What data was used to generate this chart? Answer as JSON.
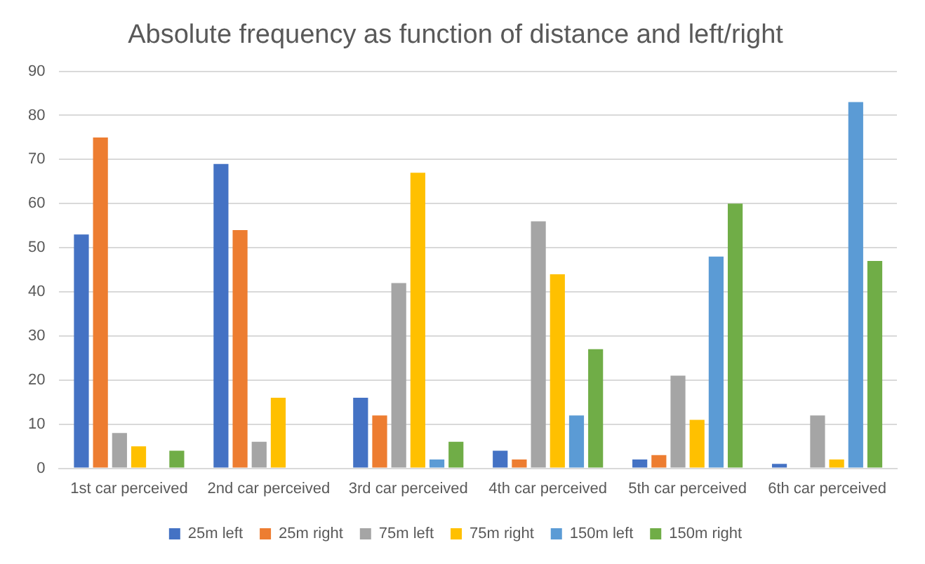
{
  "chart_data": {
    "type": "bar",
    "title": "Absolute frequency as function of distance and left/right",
    "categories": [
      "1st car perceived",
      "2nd car perceived",
      "3rd car perceived",
      "4th car perceived",
      "5th car perceived",
      "6th car perceived"
    ],
    "series": [
      {
        "name": "25m left",
        "color": "#4472c4",
        "values": [
          53,
          69,
          16,
          4,
          2,
          1
        ]
      },
      {
        "name": "25m right",
        "color": "#ed7d31",
        "values": [
          75,
          54,
          12,
          2,
          3,
          0
        ]
      },
      {
        "name": "75m left",
        "color": "#a5a5a5",
        "values": [
          8,
          6,
          42,
          56,
          21,
          12
        ]
      },
      {
        "name": "75m right",
        "color": "#ffc000",
        "values": [
          5,
          16,
          67,
          44,
          11,
          2
        ]
      },
      {
        "name": "150m left",
        "color": "#5b9bd5",
        "values": [
          0,
          0,
          2,
          12,
          48,
          83
        ]
      },
      {
        "name": "150m right",
        "color": "#70ad47",
        "values": [
          4,
          0,
          6,
          27,
          60,
          47
        ]
      }
    ],
    "ylim": [
      0,
      90
    ],
    "yticks": [
      0,
      10,
      20,
      30,
      40,
      50,
      60,
      70,
      80,
      90
    ],
    "grid": "y",
    "legend": "bottom"
  }
}
